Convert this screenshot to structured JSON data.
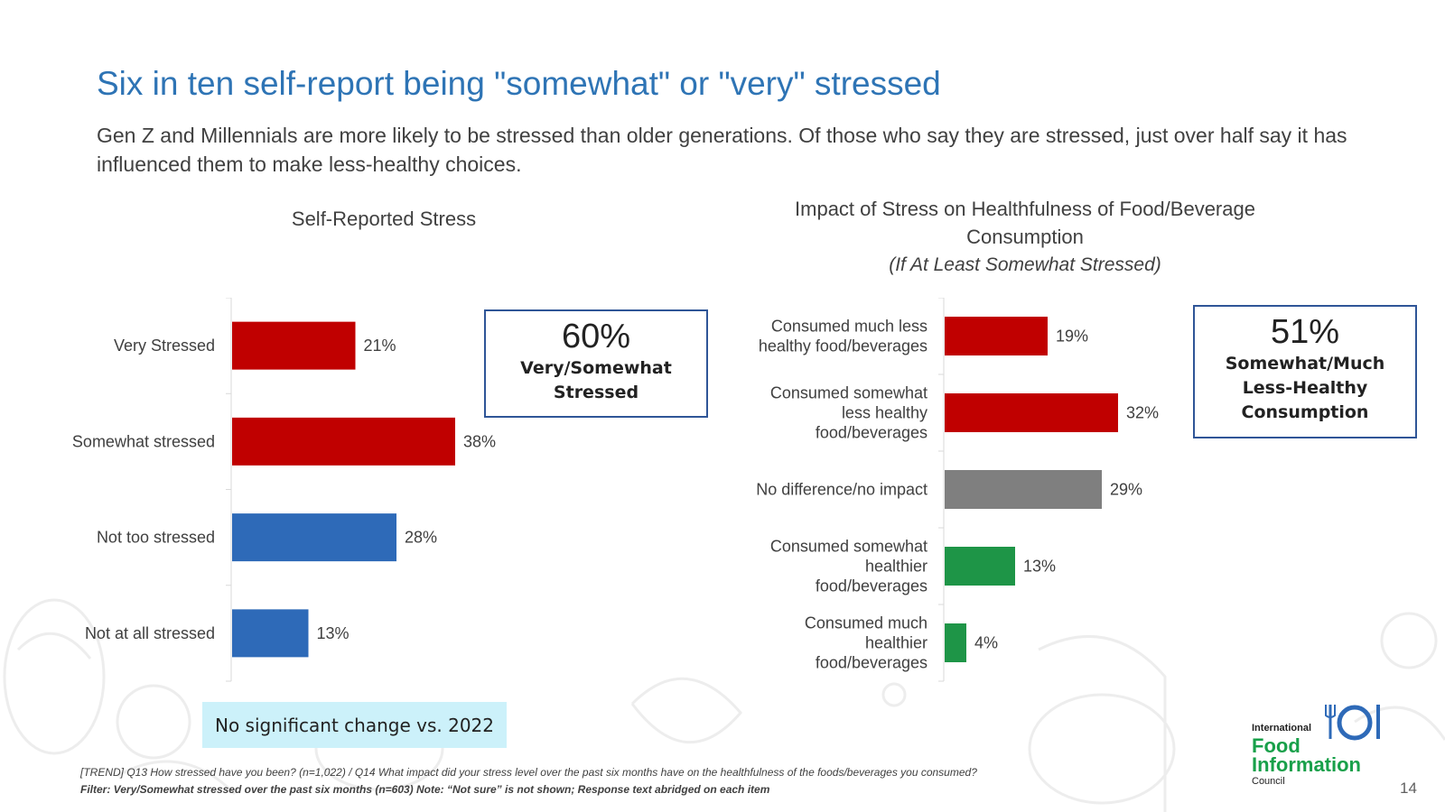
{
  "slide": {
    "title": "Six in ten self-report being \"somewhat\" or \"very\" stressed",
    "subtitle": "Gen Z and Millennials are more likely to be stressed than older generations. Of those who say they are stressed, just over half say it has influenced them to make less-healthy choices.",
    "callout_left": {
      "value": "60%",
      "label_line1": "Very/Somewhat",
      "label_line2": "Stressed"
    },
    "callout_right": {
      "value": "51%",
      "label_line1": "Somewhat/Much",
      "label_line2": "Less-Healthy",
      "label_line3": "Consumption"
    },
    "banner": "No significant change vs. 2022",
    "footnote1": "[TREND] Q13 How stressed have you been? (n=1,022) / Q14 What impact did your stress level over the past six months have on the healthfulness of the foods/beverages you consumed?",
    "footnote2": "Filter: Very/Somewhat stressed over the past six months (n=603) Note: “Not sure” is not shown; Response text abridged on each item",
    "logo": {
      "line1": "International",
      "line2": "Food",
      "line3": "Information",
      "line4": "Council"
    },
    "page_number": "14"
  },
  "colors": {
    "title": "#2E74B5",
    "red": "#C00000",
    "blue": "#2E6AB8",
    "gray": "#7F7F7F",
    "green": "#1E9547",
    "banner": "#CCF1FA",
    "callout_border": "#2F5597"
  },
  "chart_data": [
    {
      "type": "bar",
      "orientation": "horizontal",
      "title": "Self-Reported Stress",
      "categories": [
        "Very Stressed",
        "Somewhat stressed",
        "Not too stressed",
        "Not at all stressed"
      ],
      "values": [
        21,
        38,
        28,
        13
      ],
      "value_labels": [
        "21%",
        "38%",
        "28%",
        "13%"
      ],
      "bar_colors": [
        "#C00000",
        "#C00000",
        "#2E6AB8",
        "#2E6AB8"
      ],
      "xlim": [
        0,
        100
      ]
    },
    {
      "type": "bar",
      "orientation": "horizontal",
      "title_line1": "Impact of Stress on Healthfulness of Food/Beverage",
      "title_line2": "Consumption",
      "subtitle": "(If At Least Somewhat Stressed)",
      "categories": [
        [
          "Consumed much less",
          "healthy food/beverages"
        ],
        [
          "Consumed somewhat",
          "less healthy",
          "food/beverages"
        ],
        [
          "No difference/no impact"
        ],
        [
          "Consumed somewhat",
          "healthier",
          "food/beverages"
        ],
        [
          "Consumed much",
          "healthier",
          "food/beverages"
        ]
      ],
      "values": [
        19,
        32,
        29,
        13,
        4
      ],
      "value_labels": [
        "19%",
        "32%",
        "29%",
        "13%",
        "4%"
      ],
      "bar_colors": [
        "#C00000",
        "#C00000",
        "#7F7F7F",
        "#1E9547",
        "#1E9547"
      ],
      "xlim": [
        0,
        100
      ]
    }
  ]
}
